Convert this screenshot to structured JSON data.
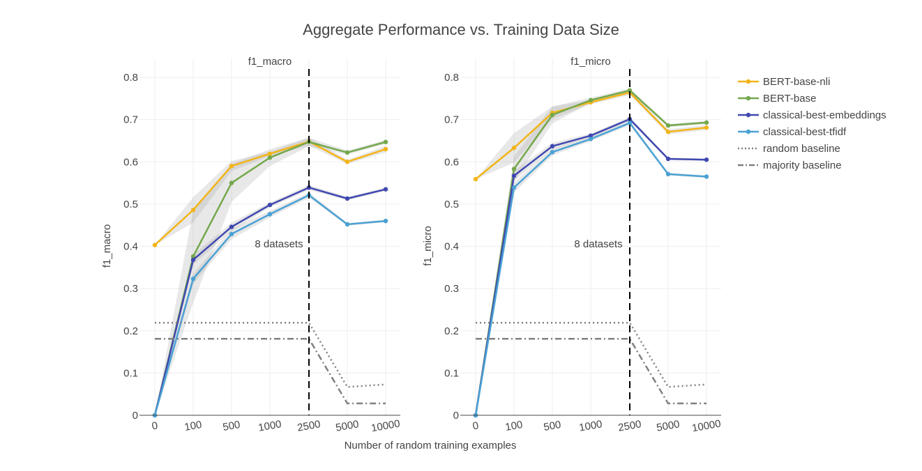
{
  "title": "Aggregate Performance vs. Training Data Size",
  "xlabel": "Number of random training examples",
  "colors": {
    "BERT-base-nli": "#f2b418",
    "BERT-base": "#74a84c",
    "classical-best-embeddings": "#4048b0",
    "classical-best-tfidf": "#4aa1d4",
    "random baseline": "#808080",
    "majority baseline": "#808080"
  },
  "legend": [
    {
      "name": "BERT-base-nli",
      "style": "solid-marker"
    },
    {
      "name": "BERT-base",
      "style": "solid-marker"
    },
    {
      "name": "classical-best-embeddings",
      "style": "solid-marker"
    },
    {
      "name": "classical-best-tfidf",
      "style": "solid-marker"
    },
    {
      "name": "random baseline",
      "style": "dot"
    },
    {
      "name": "majority baseline",
      "style": "dashdot"
    }
  ],
  "chart_data": [
    {
      "type": "line",
      "subtitle": "f1_macro",
      "ylabel": "f1_macro",
      "ylim": [
        0,
        0.8
      ],
      "yticks": [
        0,
        0.1,
        0.2,
        0.3,
        0.4,
        0.5,
        0.6,
        0.7,
        0.8
      ],
      "categories": [
        "0",
        "100",
        "500",
        "1000",
        "2500",
        "5000",
        "10000"
      ],
      "vline_category": "2500",
      "annotation": "8 datasets",
      "series": [
        {
          "name": "BERT-base-nli",
          "values": [
            0.403,
            0.486,
            0.59,
            0.619,
            0.648,
            0.6,
            0.63
          ],
          "band": [
            0.0,
            0.03,
            0.012,
            0.005,
            0.01,
            0.005,
            0.008
          ]
        },
        {
          "name": "BERT-base",
          "values": [
            0.0,
            0.376,
            0.55,
            0.61,
            0.647,
            0.622,
            0.647
          ],
          "band": [
            0.0,
            0.11,
            0.045,
            0.02,
            0.01,
            0.005,
            0.005
          ]
        },
        {
          "name": "classical-best-embeddings",
          "values": [
            0.0,
            0.368,
            0.446,
            0.498,
            0.539,
            0.513,
            0.535
          ],
          "band": [
            0.0,
            0.012,
            0.01,
            0.006,
            0.006,
            0.004,
            0.004
          ]
        },
        {
          "name": "classical-best-tfidf",
          "values": [
            0.0,
            0.323,
            0.429,
            0.476,
            0.521,
            0.452,
            0.46
          ],
          "band": [
            0.0,
            0.012,
            0.012,
            0.008,
            0.006,
            0.003,
            0.003
          ]
        },
        {
          "name": "random baseline",
          "values": [
            0.219,
            0.219,
            0.219,
            0.219,
            0.219,
            0.067,
            0.073
          ]
        },
        {
          "name": "majority baseline",
          "values": [
            0.181,
            0.181,
            0.181,
            0.181,
            0.181,
            0.028,
            0.028
          ]
        }
      ]
    },
    {
      "type": "line",
      "subtitle": "f1_micro",
      "ylabel": "f1_micro",
      "ylim": [
        0,
        0.8
      ],
      "yticks": [
        0,
        0.1,
        0.2,
        0.3,
        0.4,
        0.5,
        0.6,
        0.7,
        0.8
      ],
      "categories": [
        "0",
        "100",
        "500",
        "1000",
        "2500",
        "5000",
        "10000"
      ],
      "vline_category": "2500",
      "annotation": "8 datasets",
      "series": [
        {
          "name": "BERT-base-nli",
          "values": [
            0.559,
            0.633,
            0.716,
            0.741,
            0.764,
            0.671,
            0.681
          ],
          "band": [
            0.0,
            0.035,
            0.015,
            0.005,
            0.006,
            0.006,
            0.006
          ]
        },
        {
          "name": "BERT-base",
          "values": [
            0.0,
            0.583,
            0.711,
            0.746,
            0.769,
            0.686,
            0.693
          ],
          "band": [
            0.0,
            0.03,
            0.02,
            0.006,
            0.005,
            0.004,
            0.004
          ]
        },
        {
          "name": "classical-best-embeddings",
          "values": [
            0.0,
            0.567,
            0.637,
            0.662,
            0.701,
            0.607,
            0.605
          ],
          "band": [
            0.0,
            0.012,
            0.008,
            0.005,
            0.005,
            0.003,
            0.003
          ]
        },
        {
          "name": "classical-best-tfidf",
          "values": [
            0.0,
            0.539,
            0.623,
            0.654,
            0.692,
            0.571,
            0.565
          ],
          "band": [
            0.0,
            0.012,
            0.008,
            0.005,
            0.005,
            0.003,
            0.003
          ]
        },
        {
          "name": "random baseline",
          "values": [
            0.219,
            0.219,
            0.219,
            0.219,
            0.219,
            0.067,
            0.073
          ]
        },
        {
          "name": "majority baseline",
          "values": [
            0.181,
            0.181,
            0.181,
            0.181,
            0.181,
            0.028,
            0.028
          ]
        }
      ]
    }
  ]
}
